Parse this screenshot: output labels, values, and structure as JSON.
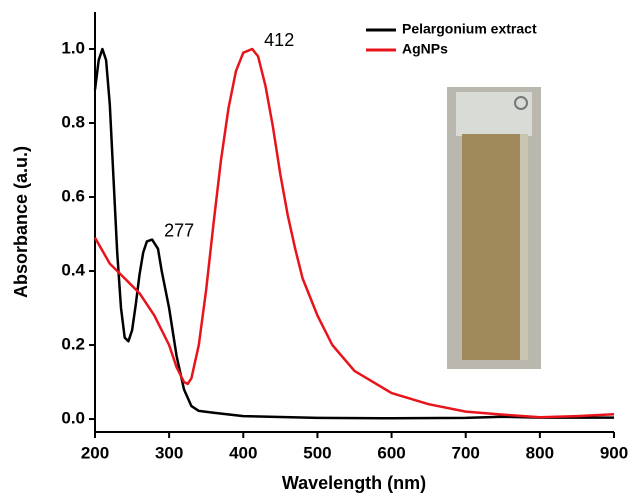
{
  "chart_data": {
    "type": "line",
    "x_label": "Wavelength (nm)",
    "y_label": "Absorbance (a.u.)",
    "xlim": [
      200,
      900
    ],
    "ylim": [
      -0.035,
      1.1
    ],
    "xticks": [
      200,
      300,
      400,
      500,
      600,
      700,
      800,
      900
    ],
    "yticks": [
      {
        "value": 0,
        "label": "0.0"
      },
      0.2,
      0.4,
      0.6,
      0.8,
      {
        "value": 1,
        "label": "1.0"
      }
    ],
    "legend": "upper right",
    "annotations": [
      "412",
      "277"
    ],
    "series": [
      {
        "name": "Pelargonium extract",
        "color": "#000000",
        "x": [
          200,
          205,
          210,
          215,
          220,
          225,
          230,
          235,
          240,
          245,
          250,
          255,
          260,
          265,
          270,
          277,
          285,
          290,
          300,
          310,
          320,
          330,
          340,
          360,
          400,
          500,
          600,
          700,
          750,
          800,
          900
        ],
        "values": [
          0.89,
          0.97,
          1.0,
          0.97,
          0.85,
          0.65,
          0.45,
          0.3,
          0.22,
          0.21,
          0.24,
          0.31,
          0.39,
          0.45,
          0.48,
          0.485,
          0.46,
          0.4,
          0.3,
          0.17,
          0.08,
          0.035,
          0.022,
          0.017,
          0.008,
          0.003,
          0.002,
          0.003,
          0.006,
          0.004,
          0.004
        ]
      },
      {
        "name": "AgNPs",
        "color": "#e8141b",
        "x": [
          200,
          220,
          240,
          260,
          280,
          300,
          310,
          320,
          325,
          330,
          340,
          350,
          360,
          370,
          380,
          390,
          400,
          412,
          420,
          430,
          440,
          450,
          460,
          470,
          480,
          500,
          520,
          550,
          600,
          650,
          700,
          750,
          800,
          850,
          900
        ],
        "values": [
          0.49,
          0.42,
          0.38,
          0.34,
          0.28,
          0.2,
          0.14,
          0.1,
          0.095,
          0.11,
          0.2,
          0.35,
          0.53,
          0.7,
          0.84,
          0.94,
          0.99,
          1.0,
          0.98,
          0.9,
          0.79,
          0.66,
          0.55,
          0.46,
          0.38,
          0.28,
          0.2,
          0.13,
          0.07,
          0.04,
          0.02,
          0.012,
          0.005,
          0.008,
          0.013
        ]
      }
    ]
  }
}
